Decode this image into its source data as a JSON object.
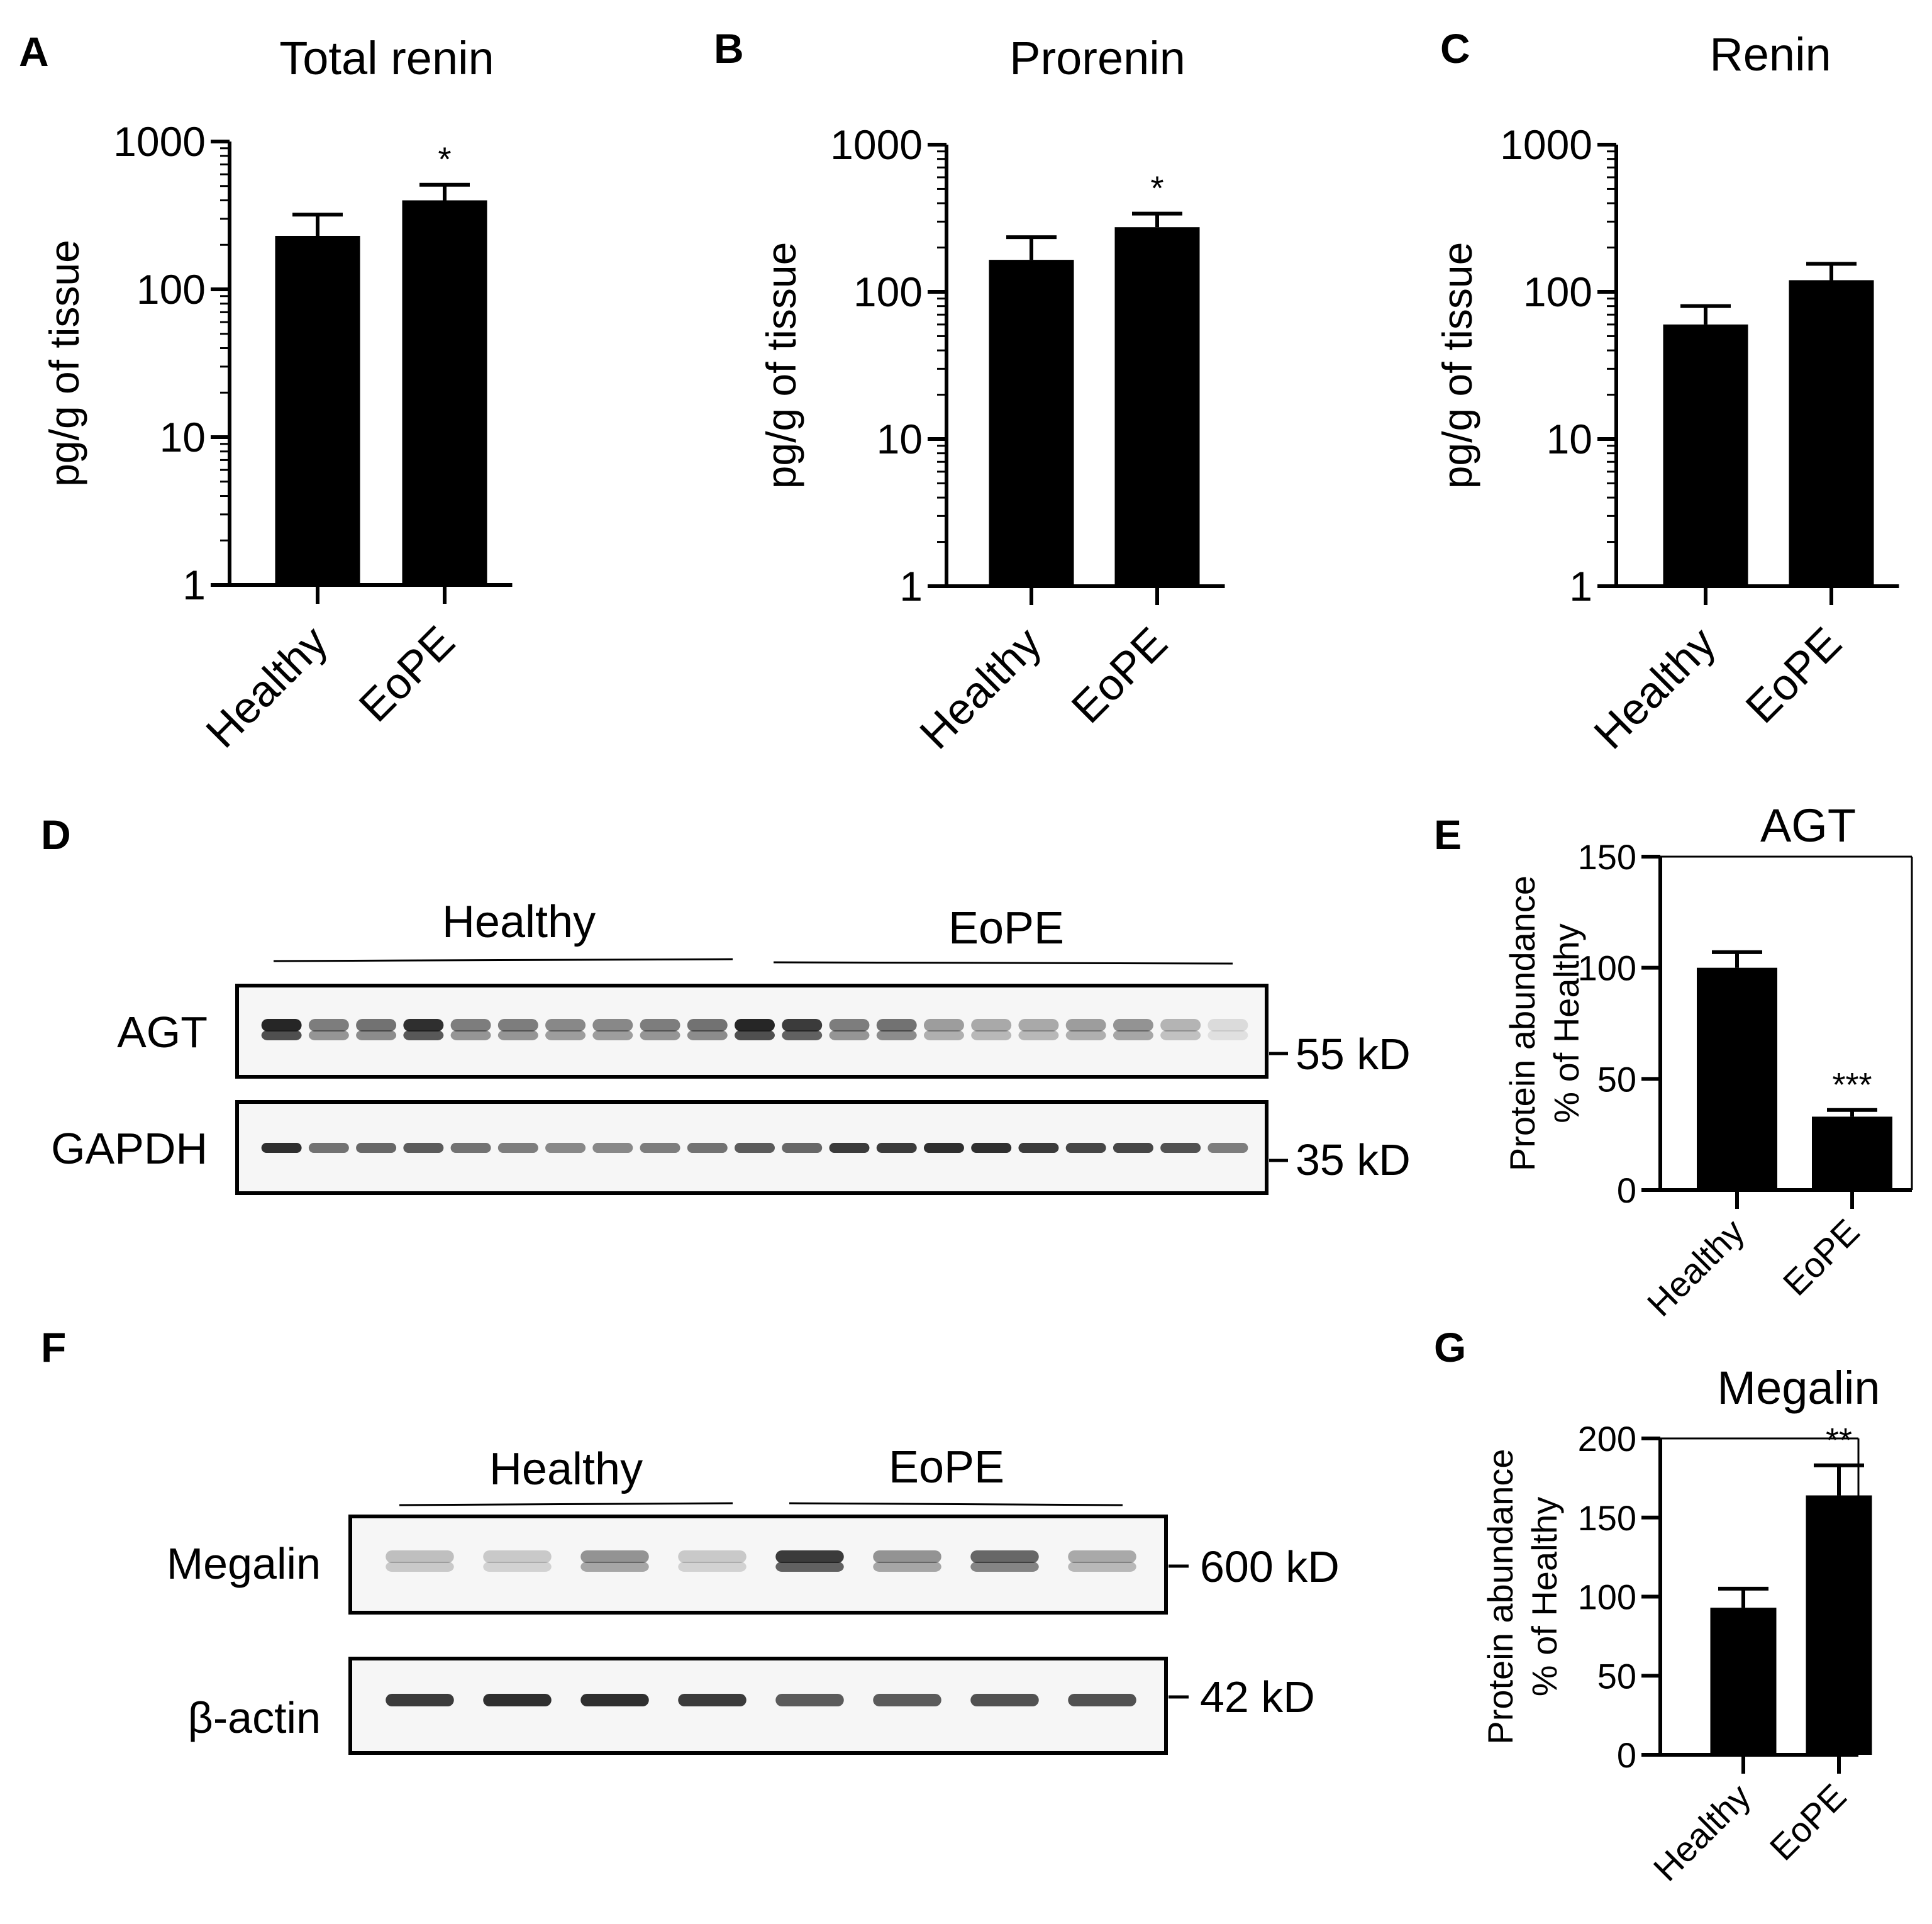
{
  "panels": {
    "A": "A",
    "B": "B",
    "C": "C",
    "D": "D",
    "E": "E",
    "F": "F",
    "G": "G"
  },
  "chart_data": [
    {
      "id": "A",
      "type": "bar",
      "title": "Total renin",
      "ylabel": "pg/g of tissue",
      "yscale": "log",
      "ylim": [
        1,
        1000
      ],
      "yticks": [
        "1",
        "10",
        "100",
        "1000"
      ],
      "categories": [
        "Healthy",
        "EoPE"
      ],
      "values": [
        230,
        400
      ],
      "errors": [
        90,
        110
      ],
      "significance": [
        "",
        "*"
      ]
    },
    {
      "id": "B",
      "type": "bar",
      "title": "Prorenin",
      "ylabel": "pg/g of tissue",
      "yscale": "log",
      "ylim": [
        1,
        1000
      ],
      "yticks": [
        "1",
        "10",
        "100",
        "1000"
      ],
      "categories": [
        "Healthy",
        "EoPE"
      ],
      "values": [
        165,
        275
      ],
      "errors": [
        70,
        65
      ],
      "significance": [
        "",
        "*"
      ]
    },
    {
      "id": "C",
      "type": "bar",
      "title": "Renin",
      "ylabel": "pg/g of tissue",
      "yscale": "log",
      "ylim": [
        1,
        1000
      ],
      "yticks": [
        "1",
        "10",
        "100",
        "1000"
      ],
      "categories": [
        "Healthy",
        "EoPE"
      ],
      "values": [
        60,
        120
      ],
      "errors": [
        20,
        35
      ],
      "significance": [
        "",
        ""
      ]
    },
    {
      "id": "E",
      "type": "bar",
      "title": "AGT",
      "ylabel": "Protein abundance",
      "ylabel2": "% of Healthy",
      "yscale": "linear",
      "ylim": [
        0,
        150
      ],
      "yticks": [
        "0",
        "50",
        "100",
        "150"
      ],
      "categories": [
        "Healthy",
        "EoPE"
      ],
      "values": [
        100,
        33
      ],
      "errors": [
        7,
        3
      ],
      "significance": [
        "",
        "***"
      ]
    },
    {
      "id": "G",
      "type": "bar",
      "title": "Megalin",
      "ylabel": "Protein abundance",
      "ylabel2": "% of Healthy",
      "yscale": "linear",
      "ylim": [
        0,
        200
      ],
      "yticks": [
        "0",
        "50",
        "100",
        "150",
        "200"
      ],
      "categories": [
        "Healthy",
        "EoPE"
      ],
      "values": [
        93,
        164
      ],
      "errors": [
        12,
        19
      ],
      "significance": [
        "",
        "**"
      ]
    }
  ],
  "blot_D": {
    "group_healthy": "Healthy",
    "group_eope": "EoPE",
    "rows": [
      {
        "label": "AGT",
        "marker": "55 kD"
      },
      {
        "label": "GAPDH",
        "marker": "35 kD"
      }
    ]
  },
  "blot_F": {
    "group_healthy": "Healthy",
    "group_eope": "EoPE",
    "rows": [
      {
        "label": "Megalin",
        "marker": "600 kD"
      },
      {
        "label": "β-actin",
        "marker": "42 kD"
      }
    ]
  },
  "colors": {
    "bar": "#000000",
    "axis": "#000000",
    "blot_bg": "#f6f6f6",
    "band": "#1a1a1a"
  }
}
